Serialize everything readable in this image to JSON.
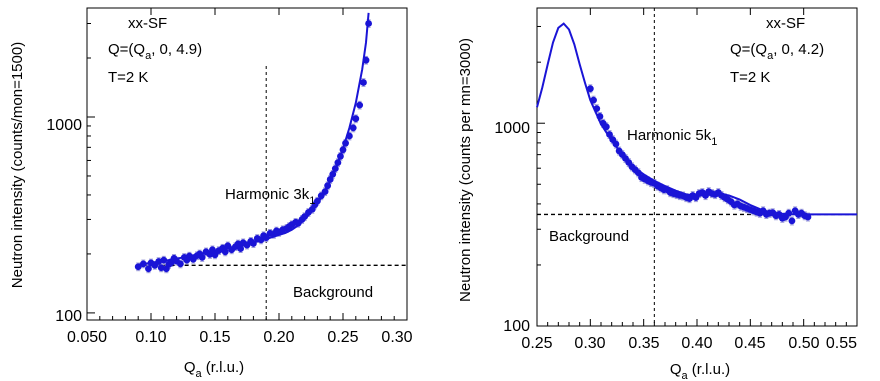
{
  "colors": {
    "series": "#1a14d6",
    "error_bar": "#9a9ad8",
    "axis": "#000000"
  },
  "chart_data": [
    {
      "type": "scatter",
      "xlabel_main": "Q",
      "xlabel_sub": "a",
      "xlabel_rest": " (r.l.u.)",
      "ylabel": "Neutron intensity (counts/mon=1500)",
      "y_scale": "log",
      "xlim": [
        0.05,
        0.3
      ],
      "ylim": [
        92,
        3600
      ],
      "x_ticks": [
        "0.050",
        "0.10",
        "0.15",
        "0.20",
        "0.25",
        "0.30"
      ],
      "y_ticks": [
        "100",
        "1000"
      ],
      "annotations": [
        "xx-SF",
        "Q=(Q",
        "a",
        ", 0, 4.9)",
        "T=2 K"
      ],
      "harmonic_label": "Harmonic 3k",
      "harmonic_sub": "1",
      "harmonic_x": 0.19,
      "background_label": "Background",
      "background_level": 175,
      "series": [
        {
          "x": [
            0.09,
            0.094,
            0.098,
            0.1,
            0.103,
            0.106,
            0.108,
            0.11,
            0.112,
            0.114,
            0.116,
            0.118,
            0.12,
            0.123,
            0.126,
            0.128,
            0.13,
            0.133,
            0.136,
            0.138,
            0.14,
            0.143,
            0.146,
            0.148,
            0.15,
            0.153,
            0.156,
            0.158,
            0.16,
            0.163,
            0.166,
            0.168,
            0.17,
            0.172,
            0.175,
            0.178,
            0.18,
            0.183,
            0.186,
            0.188,
            0.19,
            0.193,
            0.196,
            0.198,
            0.2,
            0.203,
            0.206,
            0.208,
            0.21,
            0.213,
            0.215,
            0.218,
            0.22,
            0.223,
            0.226,
            0.228,
            0.23,
            0.233,
            0.236,
            0.238,
            0.24,
            0.242,
            0.244,
            0.246,
            0.248,
            0.25,
            0.252,
            0.255,
            0.258,
            0.26,
            0.263,
            0.266,
            0.268,
            0.27
          ],
          "y": [
            172,
            178,
            168,
            180,
            175,
            183,
            170,
            186,
            168,
            177,
            181,
            190,
            184,
            178,
            192,
            186,
            195,
            188,
            196,
            200,
            192,
            205,
            199,
            210,
            198,
            208,
            214,
            205,
            220,
            210,
            218,
            225,
            213,
            228,
            222,
            232,
            226,
            240,
            236,
            248,
            242,
            255,
            252,
            262,
            258,
            266,
            270,
            276,
            282,
            290,
            287,
            300,
            310,
            326,
            338,
            356,
            372,
            396,
            416,
            446,
            480,
            510,
            545,
            585,
            630,
            680,
            735,
            800,
            880,
            980,
            1150,
            1500,
            1950,
            3000
          ]
        }
      ],
      "fit": {
        "x": [
          0.09,
          0.1,
          0.11,
          0.12,
          0.13,
          0.14,
          0.15,
          0.16,
          0.17,
          0.18,
          0.19,
          0.2,
          0.205,
          0.21,
          0.215,
          0.22,
          0.225,
          0.23,
          0.235,
          0.24,
          0.245,
          0.25,
          0.255,
          0.26,
          0.265,
          0.268,
          0.27
        ],
        "y": [
          176,
          180,
          184,
          189,
          195,
          201,
          207,
          214,
          221,
          229,
          238,
          250,
          256,
          266,
          280,
          300,
          326,
          360,
          410,
          470,
          560,
          690,
          880,
          1180,
          1750,
          2400,
          3400
        ]
      }
    },
    {
      "type": "scatter",
      "xlabel_main": "Q",
      "xlabel_sub": "a",
      "xlabel_rest": " (r.l.u.)",
      "ylabel": "Neutron intensity (counts per mn=3000)",
      "y_scale": "log",
      "xlim": [
        0.25,
        0.55
      ],
      "ylim": [
        100,
        3700
      ],
      "x_ticks": [
        "0.25",
        "0.30",
        "0.35",
        "0.40",
        "0.45",
        "0.50",
        "0.55"
      ],
      "y_ticks": [
        "100",
        "1000"
      ],
      "annotations": [
        "xx-SF",
        "Q=(Q",
        "a",
        ", 0, 4.2)",
        "T=2 K"
      ],
      "harmonic_label": "Harmonic 5k",
      "harmonic_sub": "1",
      "harmonic_x": 0.36,
      "background_label": "Background",
      "background_level": 355,
      "series": [
        {
          "x": [
            0.3,
            0.303,
            0.306,
            0.309,
            0.312,
            0.315,
            0.318,
            0.321,
            0.324,
            0.327,
            0.33,
            0.333,
            0.336,
            0.339,
            0.342,
            0.345,
            0.348,
            0.351,
            0.354,
            0.357,
            0.36,
            0.363,
            0.366,
            0.369,
            0.372,
            0.375,
            0.378,
            0.381,
            0.384,
            0.387,
            0.39,
            0.393,
            0.396,
            0.399,
            0.402,
            0.405,
            0.408,
            0.411,
            0.414,
            0.417,
            0.42,
            0.423,
            0.426,
            0.429,
            0.432,
            0.435,
            0.438,
            0.441,
            0.444,
            0.447,
            0.45,
            0.453,
            0.456,
            0.459,
            0.462,
            0.465,
            0.468,
            0.471,
            0.474,
            0.477,
            0.48,
            0.483,
            0.486,
            0.489,
            0.492,
            0.495,
            0.498,
            0.501,
            0.504
          ],
          "y": [
            1480,
            1300,
            1180,
            1080,
            1000,
            960,
            880,
            830,
            790,
            730,
            700,
            670,
            640,
            610,
            590,
            570,
            540,
            530,
            520,
            510,
            505,
            490,
            480,
            470,
            470,
            455,
            450,
            445,
            440,
            438,
            430,
            425,
            440,
            430,
            450,
            455,
            440,
            460,
            450,
            445,
            455,
            440,
            430,
            420,
            410,
            395,
            400,
            390,
            385,
            380,
            375,
            370,
            365,
            360,
            370,
            355,
            360,
            362,
            350,
            355,
            340,
            345,
            360,
            330,
            370,
            355,
            360,
            350,
            345
          ]
        }
      ],
      "fit": {
        "x": [
          0.25,
          0.255,
          0.26,
          0.265,
          0.27,
          0.275,
          0.28,
          0.285,
          0.29,
          0.295,
          0.3,
          0.31,
          0.32,
          0.33,
          0.34,
          0.35,
          0.36,
          0.37,
          0.38,
          0.39,
          0.4,
          0.41,
          0.42,
          0.43,
          0.44,
          0.45,
          0.46,
          0.47,
          0.48,
          0.49,
          0.5,
          0.51,
          0.52,
          0.53,
          0.54,
          0.55
        ],
        "y": [
          1200,
          1500,
          1950,
          2500,
          2950,
          3100,
          2900,
          2450,
          1950,
          1580,
          1300,
          990,
          820,
          700,
          610,
          560,
          520,
          490,
          465,
          445,
          440,
          445,
          450,
          440,
          420,
          395,
          375,
          362,
          358,
          356,
          355,
          355,
          355,
          355,
          355,
          355
        ]
      }
    }
  ]
}
